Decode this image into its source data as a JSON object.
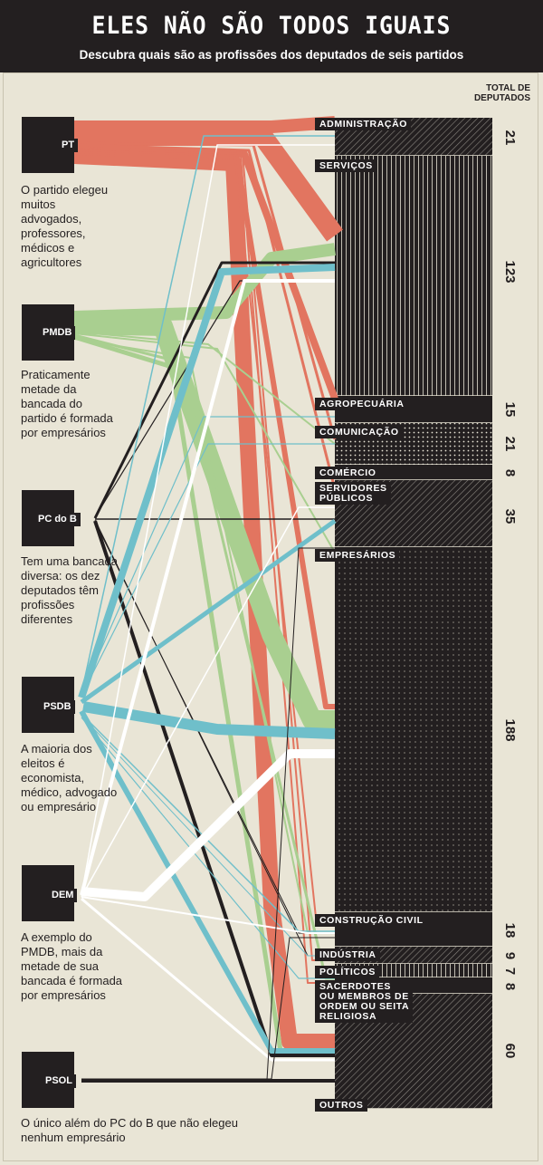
{
  "header": {
    "title": "ELES NÃO SÃO TODOS IGUAIS",
    "subtitle": "Descubra quais são as profissões dos deputados de seis partidos"
  },
  "totals_header": [
    "TOTAL DE",
    "DEPUTADOS"
  ],
  "parties": [
    {
      "id": "pt",
      "name": "PT",
      "description": "O partido elegeu muitos advogados, professores, médicos e agricultores",
      "color": "#e27560"
    },
    {
      "id": "pmdb",
      "name": "PMDB",
      "description": "Praticamente metade da bancada do partido é formada por empresários",
      "color": "#a9cf90"
    },
    {
      "id": "pcdob",
      "name": "PC do B",
      "description": "Tem uma bancada diversa: os dez deputados têm profissões diferentes",
      "color": "#231f20"
    },
    {
      "id": "psdb",
      "name": "PSDB",
      "description": "A maioria dos eleitos é economista, médico, advogado ou empresário",
      "color": "#6fbfca"
    },
    {
      "id": "dem",
      "name": "DEM",
      "description": "A exemplo do PMDB, mais da metade de sua bancada é formada por empresários",
      "color": "#ffffff"
    },
    {
      "id": "psol",
      "name": "PSOL",
      "description": "O único além do PC do B que não elegeu nenhum empresário",
      "color": "#231f20"
    }
  ],
  "categories": [
    {
      "name": "ADMINISTRAÇÃO",
      "total": "21",
      "pattern": "diag"
    },
    {
      "name": "SERVIÇOS",
      "total": "123",
      "pattern": "vlines"
    },
    {
      "name": "AGROPECUÁRIA",
      "total": "15",
      "pattern": "solid"
    },
    {
      "name": "COMUNICAÇÃO",
      "total": "21",
      "pattern": "dots"
    },
    {
      "name": "COMÉRCIO",
      "total": "8",
      "pattern": "solid"
    },
    {
      "name": "SERVIDORES\nPÚBLICOS",
      "total": "35",
      "pattern": "diag"
    },
    {
      "name": "EMPRESÁRIOS",
      "total": "188",
      "pattern": "finedots"
    },
    {
      "name": "CONSTRUÇÃO CIVIL",
      "total": "18",
      "pattern": "solid"
    },
    {
      "name": "INDÚSTRIA",
      "total": "9",
      "pattern": "diag"
    },
    {
      "name": "POLÍTICOS",
      "total": "7",
      "pattern": "vlines"
    },
    {
      "name": "SACERDOTES\nOU MEMBROS DE\nORDEM OU SEITA\nRELIGIOSA",
      "total": "8",
      "pattern": "solid"
    },
    {
      "name": "OUTROS",
      "total": "60",
      "pattern": "diag"
    }
  ]
}
